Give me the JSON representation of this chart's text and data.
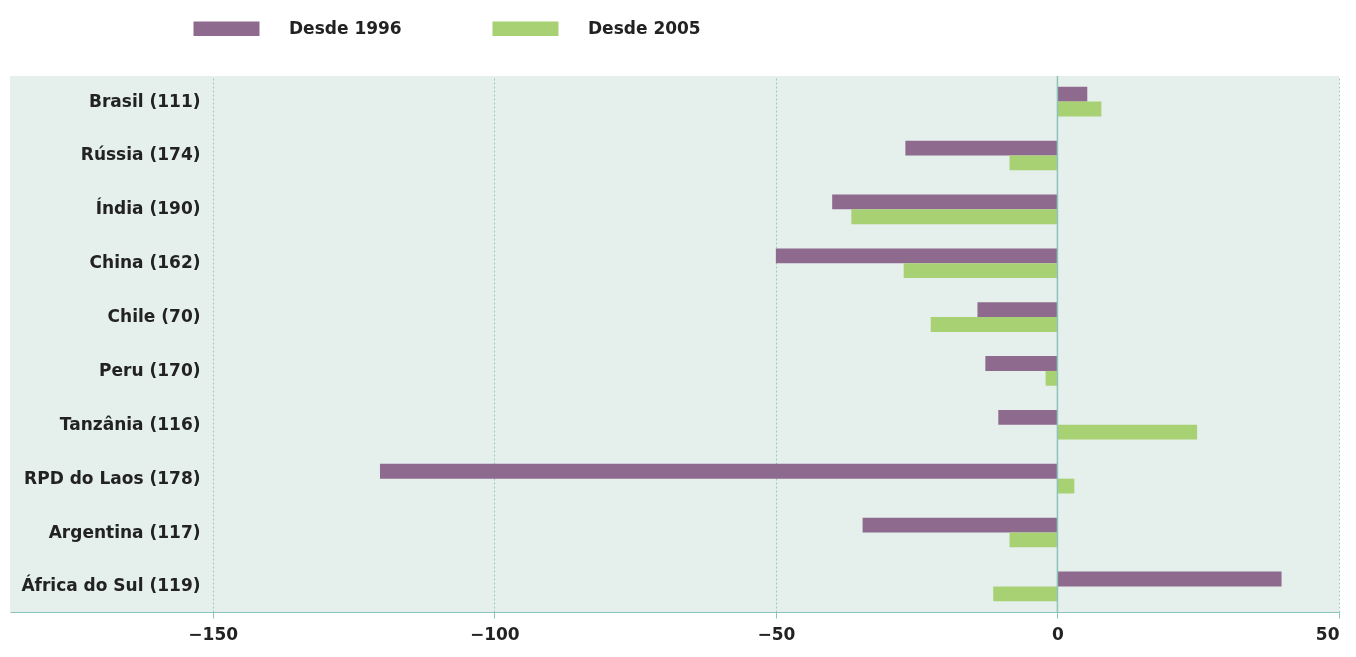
{
  "chart_data": {
    "type": "bar",
    "orientation": "horizontal",
    "categories": [
      "Brasil (111)",
      "Rússia (174)",
      "Índia (190)",
      "China (162)",
      "Chile (70)",
      "Peru (170)",
      "Tanzânia (116)",
      "RPD do Laos (178)",
      "Argentina  (117)",
      "África do Sul (119)"
    ],
    "series": [
      {
        "name": "Desde 1996",
        "color": "#8e6a8e",
        "values": [
          5.3,
          -27,
          -40,
          -50,
          -14.2,
          -12.8,
          -10.5,
          -120.3,
          -34.6,
          39.8
        ]
      },
      {
        "name": "Desde 2005",
        "color": "#a8d174",
        "values": [
          7.8,
          -8.5,
          -36.6,
          -27.3,
          -22.5,
          -2.1,
          24.8,
          3,
          -8.5,
          -11.4
        ]
      }
    ],
    "xlim": [
      -186,
      50
    ],
    "xticks": [
      -150,
      -100,
      -50,
      0,
      50
    ],
    "grid": "x",
    "legend": "top",
    "ref_lines": [
      {
        "axis": "x",
        "value": 0,
        "color": "#8cc4bc"
      }
    ]
  }
}
